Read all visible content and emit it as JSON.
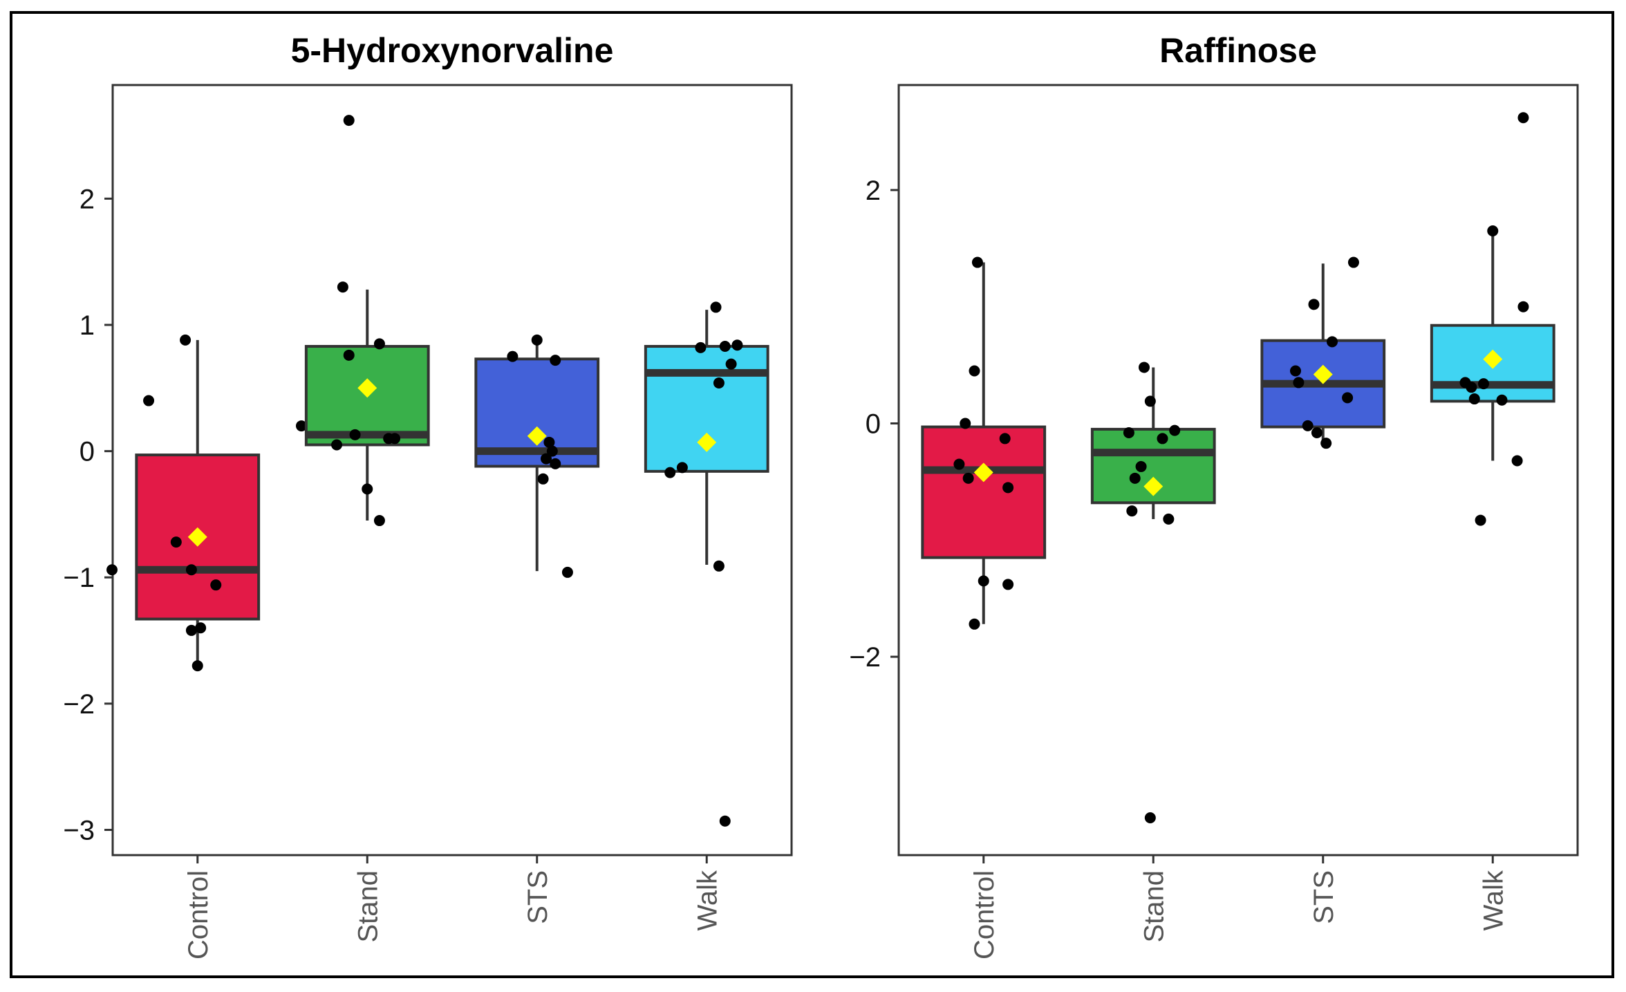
{
  "chart_data": [
    {
      "type": "box",
      "title": "5-Hydroxynorvaline",
      "xlabel": "",
      "ylabel": "",
      "ylim": [
        -3.2,
        2.9
      ],
      "yticks": [
        2,
        1,
        0,
        -1,
        -2,
        -3
      ],
      "ytick_labels": [
        "2",
        "1",
        "0",
        "−1",
        "−2",
        "−3"
      ],
      "categories": [
        "Control",
        "Stand",
        "STS",
        "Walk"
      ],
      "colors": [
        "#e31a47",
        "#39b04a",
        "#4361d8",
        "#40d4f2"
      ],
      "series": [
        {
          "name": "Control",
          "whisker_low": -1.7,
          "q1": -1.33,
          "median": -0.94,
          "q3": -0.03,
          "whisker_high": 0.88,
          "mean": -0.68,
          "points": [
            [
              -0.2,
              0.88
            ],
            [
              -0.8,
              0.4
            ],
            [
              -0.35,
              -0.72
            ],
            [
              -1.4,
              -0.94
            ],
            [
              -0.1,
              -0.94
            ],
            [
              0.3,
              -1.06
            ],
            [
              -0.1,
              -1.42
            ],
            [
              0.05,
              -1.4
            ],
            [
              0.0,
              -1.7
            ],
            [
              1.7,
              0.2
            ]
          ]
        },
        {
          "name": "Stand",
          "whisker_low": -0.55,
          "q1": 0.05,
          "median": 0.13,
          "q3": 0.83,
          "whisker_high": 1.28,
          "mean": 0.5,
          "points": [
            [
              -0.3,
              2.62
            ],
            [
              -0.4,
              1.3
            ],
            [
              -0.3,
              0.76
            ],
            [
              0.2,
              0.85
            ],
            [
              -0.2,
              0.13
            ],
            [
              0.35,
              0.1
            ],
            [
              0.45,
              0.1
            ],
            [
              -0.5,
              0.05
            ],
            [
              0.0,
              -0.3
            ],
            [
              0.2,
              -0.55
            ]
          ]
        },
        {
          "name": "STS",
          "whisker_low": -0.95,
          "q1": -0.12,
          "median": 0.0,
          "q3": 0.73,
          "whisker_high": 0.88,
          "mean": 0.12,
          "points": [
            [
              0.0,
              0.88
            ],
            [
              -0.4,
              0.75
            ],
            [
              0.3,
              0.72
            ],
            [
              0.2,
              0.07
            ],
            [
              0.25,
              0.0
            ],
            [
              0.15,
              -0.06
            ],
            [
              0.3,
              -0.1
            ],
            [
              0.1,
              -0.22
            ],
            [
              0.5,
              -0.96
            ]
          ]
        },
        {
          "name": "Walk",
          "whisker_low": -0.9,
          "q1": -0.16,
          "median": 0.62,
          "q3": 0.83,
          "whisker_high": 1.12,
          "mean": 0.07,
          "points": [
            [
              0.15,
              1.14
            ],
            [
              -0.1,
              0.82
            ],
            [
              0.3,
              0.83
            ],
            [
              0.5,
              0.84
            ],
            [
              0.4,
              0.69
            ],
            [
              0.2,
              0.54
            ],
            [
              -0.4,
              -0.13
            ],
            [
              -0.6,
              -0.17
            ],
            [
              0.2,
              -0.91
            ],
            [
              0.3,
              -2.93
            ]
          ]
        }
      ]
    },
    {
      "type": "box",
      "title": "Raffinose",
      "xlabel": "",
      "ylabel": "",
      "ylim": [
        -3.7,
        2.9
      ],
      "yticks": [
        2,
        0,
        -2
      ],
      "ytick_labels": [
        "2",
        "0",
        "−2"
      ],
      "categories": [
        "Control",
        "Stand",
        "STS",
        "Walk"
      ],
      "colors": [
        "#e31a47",
        "#39b04a",
        "#4361d8",
        "#40d4f2"
      ],
      "series": [
        {
          "name": "Control",
          "whisker_low": -1.72,
          "q1": -1.15,
          "median": -0.4,
          "q3": -0.03,
          "whisker_high": 1.38,
          "mean": -0.42,
          "points": [
            [
              -0.1,
              1.38
            ],
            [
              -0.15,
              0.45
            ],
            [
              -0.3,
              0.0
            ],
            [
              -0.4,
              -0.35
            ],
            [
              -0.25,
              -0.47
            ],
            [
              0.35,
              -0.13
            ],
            [
              0.4,
              -0.55
            ],
            [
              0.0,
              -1.35
            ],
            [
              0.4,
              -1.38
            ],
            [
              -0.15,
              -1.72
            ]
          ]
        },
        {
          "name": "Stand",
          "whisker_low": -0.82,
          "q1": -0.68,
          "median": -0.25,
          "q3": -0.05,
          "whisker_high": 0.48,
          "mean": -0.54,
          "points": [
            [
              -0.15,
              0.48
            ],
            [
              -0.05,
              0.19
            ],
            [
              -0.4,
              -0.08
            ],
            [
              0.35,
              -0.06
            ],
            [
              0.15,
              -0.13
            ],
            [
              -0.2,
              -0.37
            ],
            [
              -0.3,
              -0.47
            ],
            [
              -0.35,
              -0.75
            ],
            [
              0.25,
              -0.82
            ],
            [
              -0.05,
              -3.38
            ]
          ]
        },
        {
          "name": "STS",
          "whisker_low": -0.15,
          "q1": -0.03,
          "median": 0.34,
          "q3": 0.71,
          "whisker_high": 1.37,
          "mean": 0.42,
          "points": [
            [
              -0.15,
              1.02
            ],
            [
              0.5,
              1.38
            ],
            [
              0.15,
              0.7
            ],
            [
              -0.45,
              0.45
            ],
            [
              -0.4,
              0.35
            ],
            [
              0.4,
              0.22
            ],
            [
              -0.25,
              -0.02
            ],
            [
              -0.1,
              -0.08
            ],
            [
              0.05,
              -0.17
            ]
          ]
        },
        {
          "name": "Walk",
          "whisker_low": -0.32,
          "q1": 0.19,
          "median": 0.33,
          "q3": 0.84,
          "whisker_high": 1.65,
          "mean": 0.55,
          "points": [
            [
              0.0,
              1.65
            ],
            [
              0.5,
              2.62
            ],
            [
              0.5,
              1.0
            ],
            [
              -0.45,
              0.35
            ],
            [
              -0.35,
              0.31
            ],
            [
              -0.15,
              0.34
            ],
            [
              -0.3,
              0.21
            ],
            [
              0.15,
              0.2
            ],
            [
              0.4,
              -0.32
            ],
            [
              -0.2,
              -0.83
            ]
          ]
        }
      ]
    }
  ]
}
